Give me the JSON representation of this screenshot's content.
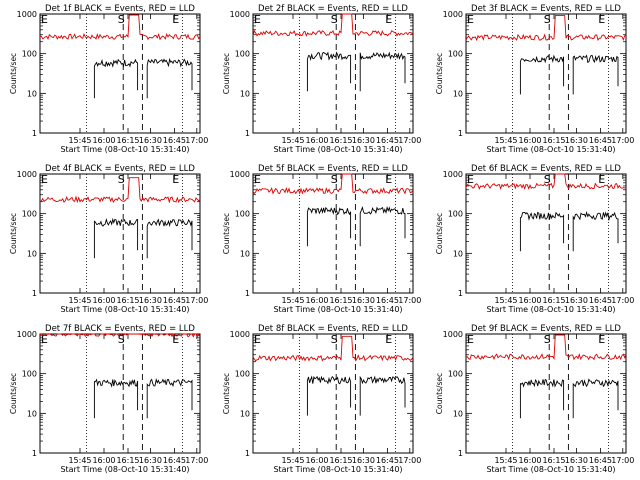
{
  "figure": {
    "ylabel": "Counts/sec",
    "xlabel": "Start Time (08-Oct-10 15:31:40)",
    "colors": {
      "events": "#000000",
      "lld": "#dd0000",
      "axes": "#000000"
    }
  },
  "chart_data": [
    {
      "type": "line",
      "title": "Det 1f BLACK = Events, RED = LLD",
      "ylim": [
        1,
        1000
      ],
      "yscale": "log",
      "yticks": [
        "1",
        "10",
        "100",
        "1000"
      ],
      "xticks": [
        "15:45",
        "16:00",
        "16:15",
        "16:30",
        "16:45",
        "17:00"
      ],
      "markers": [
        "E",
        "S",
        "E"
      ],
      "lld": 270,
      "events": 60
    },
    {
      "type": "line",
      "title": "Det 2f BLACK = Events, RED = LLD",
      "ylim": [
        1,
        1000
      ],
      "yscale": "log",
      "yticks": [
        "1",
        "10",
        "100",
        "1000"
      ],
      "xticks": [
        "15:45",
        "16:00",
        "16:15",
        "16:30",
        "16:45",
        "17:00"
      ],
      "markers": [
        "E",
        "S",
        "E"
      ],
      "lld": 330,
      "events": 90
    },
    {
      "type": "line",
      "title": "Det 3f BLACK = Events, RED = LLD",
      "ylim": [
        1,
        1000
      ],
      "yscale": "log",
      "yticks": [
        "1",
        "10",
        "100",
        "1000"
      ],
      "xticks": [
        "15:45",
        "16:00",
        "16:15",
        "16:30",
        "16:45",
        "17:00"
      ],
      "markers": [
        "E",
        "S",
        "E"
      ],
      "lld": 260,
      "events": 75
    },
    {
      "type": "line",
      "title": "Det 4f BLACK = Events, RED = LLD",
      "ylim": [
        1,
        1000
      ],
      "yscale": "log",
      "yticks": [
        "1",
        "10",
        "100",
        "1000"
      ],
      "xticks": [
        "15:45",
        "16:00",
        "16:15",
        "16:30",
        "16:45",
        "17:00"
      ],
      "markers": [
        "E",
        "S",
        "E"
      ],
      "lld": 230,
      "events": 60
    },
    {
      "type": "line",
      "title": "Det 5f BLACK = Events, RED = LLD",
      "ylim": [
        1,
        1000
      ],
      "yscale": "log",
      "yticks": [
        "1",
        "10",
        "100",
        "1000"
      ],
      "xticks": [
        "15:45",
        "16:00",
        "16:15",
        "16:30",
        "16:45",
        "17:00"
      ],
      "markers": [
        "E",
        "S",
        "E"
      ],
      "lld": 380,
      "events": 120
    },
    {
      "type": "line",
      "title": "Det 6f BLACK = Events, RED = LLD",
      "ylim": [
        1,
        1000
      ],
      "yscale": "log",
      "yticks": [
        "1",
        "10",
        "100",
        "1000"
      ],
      "xticks": [
        "15:45",
        "16:00",
        "16:15",
        "16:30",
        "16:45",
        "17:00"
      ],
      "markers": [
        "E",
        "S",
        "E"
      ],
      "lld": 500,
      "events": 90
    },
    {
      "type": "line",
      "title": "Det 7f BLACK = Events, RED = LLD",
      "ylim": [
        1,
        1000
      ],
      "yscale": "log",
      "yticks": [
        "1",
        "10",
        "100",
        "1000"
      ],
      "xticks": [
        "15:45",
        "16:00",
        "16:15",
        "16:30",
        "16:45",
        "17:00"
      ],
      "markers": [
        "E",
        "S",
        "E"
      ],
      "lld": 1000,
      "events": 60
    },
    {
      "type": "line",
      "title": "Det 8f BLACK = Events, RED = LLD",
      "ylim": [
        1,
        1000
      ],
      "yscale": "log",
      "yticks": [
        "1",
        "10",
        "100",
        "1000"
      ],
      "xticks": [
        "15:45",
        "16:00",
        "16:15",
        "16:30",
        "16:45",
        "17:00"
      ],
      "markers": [
        "E",
        "S",
        "E"
      ],
      "lld": 250,
      "events": 70
    },
    {
      "type": "line",
      "title": "Det 9f BLACK = Events, RED = LLD",
      "ylim": [
        1,
        1000
      ],
      "yscale": "log",
      "yticks": [
        "1",
        "10",
        "100",
        "1000"
      ],
      "xticks": [
        "15:45",
        "16:00",
        "16:15",
        "16:30",
        "16:45",
        "17:00"
      ],
      "markers": [
        "E",
        "S",
        "E"
      ],
      "lld": 270,
      "events": 60
    }
  ]
}
